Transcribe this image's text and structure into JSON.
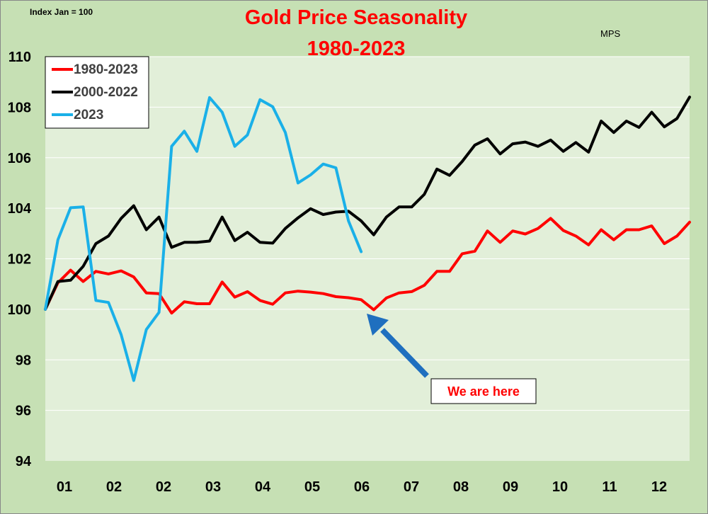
{
  "chart_data": {
    "type": "line",
    "title": "Gold Price Seasonality",
    "subtitle": "1980-2023",
    "note_top_left": "Index Jan = 100",
    "note_top_right": "MPS",
    "annotation": "We are here",
    "ylim": [
      94,
      110
    ],
    "yticks": [
      94,
      96,
      98,
      100,
      102,
      104,
      106,
      108,
      110
    ],
    "x_tick_labels": [
      "01",
      "02",
      "02",
      "03",
      "04",
      "05",
      "06",
      "07",
      "08",
      "09",
      "10",
      "11",
      "12"
    ],
    "x_count": 52,
    "grid": true,
    "legend_position": "top-left",
    "series": [
      {
        "name": "1980-2023",
        "color": "#ff0000",
        "values": [
          100.0,
          101.05,
          101.55,
          101.1,
          101.5,
          101.4,
          101.52,
          101.28,
          100.65,
          100.62,
          99.85,
          100.3,
          100.22,
          100.22,
          101.08,
          100.48,
          100.7,
          100.35,
          100.2,
          100.65,
          100.72,
          100.68,
          100.62,
          100.5,
          100.46,
          100.38,
          99.98,
          100.45,
          100.65,
          100.7,
          100.95,
          101.5,
          101.5,
          102.2,
          102.3,
          103.1,
          102.65,
          103.1,
          102.98,
          103.2,
          103.6,
          103.12,
          102.9,
          102.55,
          103.15,
          102.75,
          103.15,
          103.15,
          103.3,
          102.6,
          102.9,
          103.45
        ]
      },
      {
        "name": "2000-2022",
        "color": "#000000",
        "values": [
          100.0,
          101.1,
          101.15,
          101.7,
          102.6,
          102.9,
          103.6,
          104.1,
          103.15,
          103.65,
          102.45,
          102.65,
          102.65,
          102.7,
          103.65,
          102.72,
          103.05,
          102.65,
          102.62,
          103.2,
          103.62,
          103.98,
          103.75,
          103.85,
          103.88,
          103.5,
          102.95,
          103.65,
          104.05,
          104.05,
          104.55,
          105.55,
          105.3,
          105.85,
          106.5,
          106.75,
          106.15,
          106.55,
          106.62,
          106.45,
          106.7,
          106.25,
          106.6,
          106.22,
          107.45,
          107.0,
          107.45,
          107.2,
          107.8,
          107.22,
          107.55,
          108.4
        ]
      },
      {
        "name": "2023",
        "color": "#1ab0e8",
        "values": [
          100.0,
          102.75,
          104.02,
          104.05,
          100.35,
          100.27,
          99.0,
          97.18,
          99.2,
          99.88,
          106.45,
          107.05,
          106.25,
          108.38,
          107.8,
          106.45,
          106.9,
          108.3,
          108.02,
          107.0,
          105.0,
          105.32,
          105.75,
          105.6,
          103.5,
          102.28
        ]
      }
    ]
  }
}
